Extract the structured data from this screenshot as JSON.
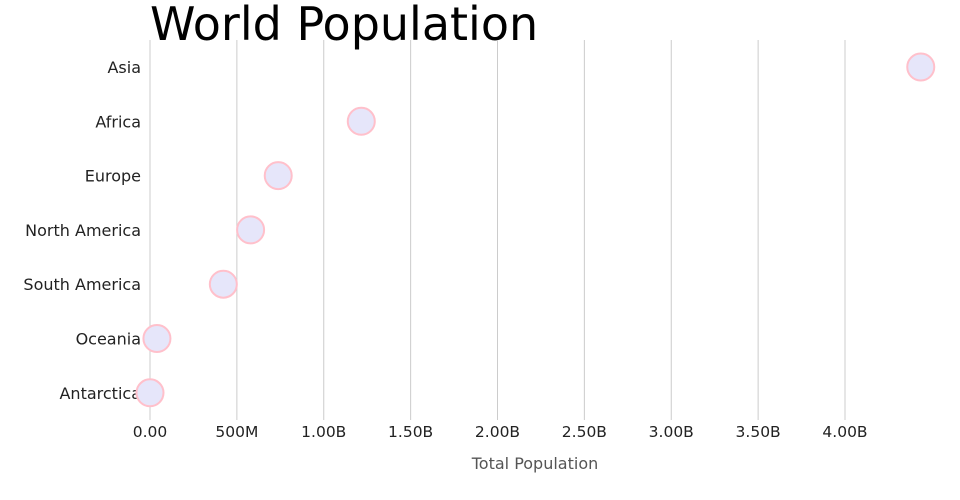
{
  "chart_data": {
    "type": "scatter",
    "title": "World Population",
    "xlabel": "Total Population",
    "ylabel": "",
    "xlim": [
      0,
      4450000000
    ],
    "xticks": [
      0,
      500000000,
      1000000000,
      1500000000,
      2000000000,
      2500000000,
      3000000000,
      3500000000,
      4000000000
    ],
    "xtick_labels": [
      "0.00",
      "500M",
      "1.00B",
      "1.50B",
      "2.00B",
      "2.50B",
      "3.00B",
      "3.50B",
      "4.00B"
    ],
    "categories": [
      "Asia",
      "Africa",
      "Europe",
      "North America",
      "South America",
      "Oceania",
      "Antarctica"
    ],
    "values": [
      4436000000,
      1216000000,
      738000000,
      579000000,
      422000000,
      39900000,
      1000
    ],
    "grid": "vertical",
    "colors": {
      "dot_fill": "#e6e6fa",
      "dot_stroke": "#ffc0cb",
      "grid": "#cccccc"
    }
  }
}
